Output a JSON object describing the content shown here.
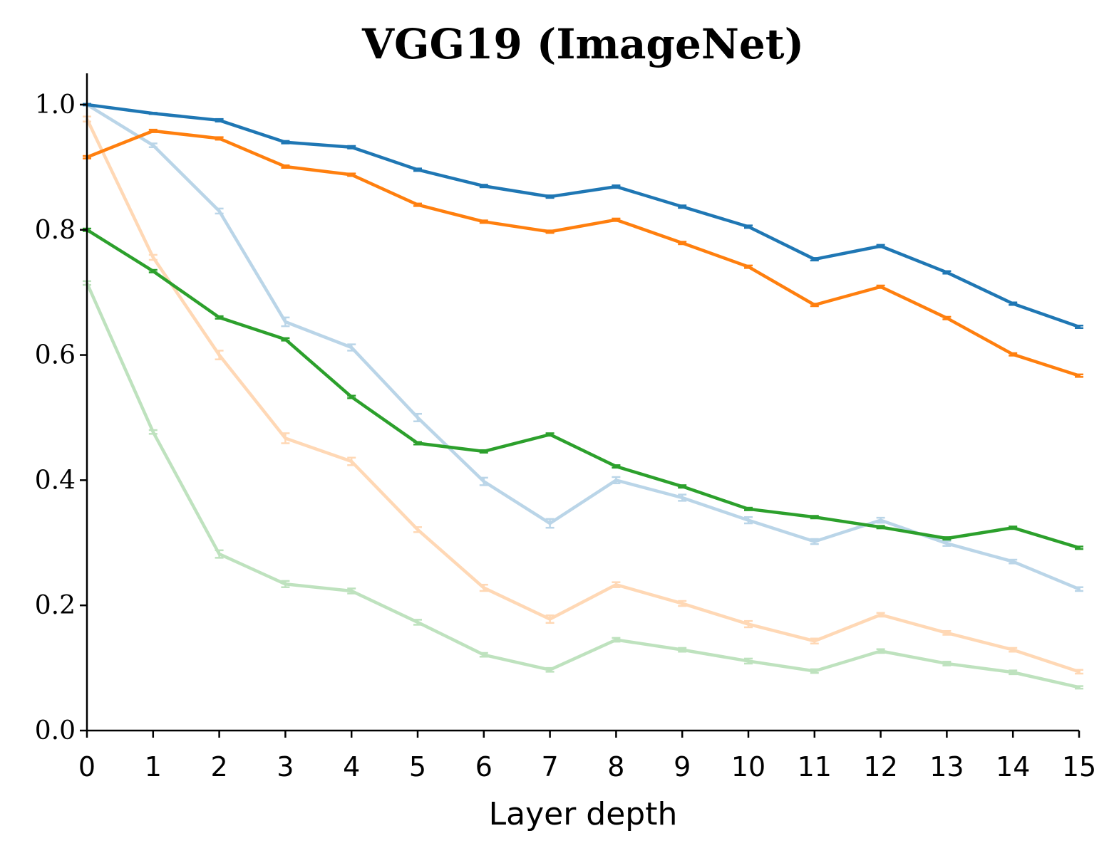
{
  "chart_data": {
    "type": "line",
    "title": "VGG19 (ImageNet)",
    "xlabel": "Layer depth",
    "ylabel": "",
    "xlim": [
      0,
      15
    ],
    "ylim": [
      0,
      1.05
    ],
    "x": [
      0,
      1,
      2,
      3,
      4,
      5,
      6,
      7,
      8,
      9,
      10,
      11,
      12,
      13,
      14,
      15
    ],
    "xticks": [
      0,
      1,
      2,
      3,
      4,
      5,
      6,
      7,
      8,
      9,
      10,
      11,
      12,
      13,
      14,
      15
    ],
    "xtick_labels": [
      "0",
      "1",
      "2",
      "3",
      "4",
      "5",
      "6",
      "7",
      "8",
      "9",
      "10",
      "11",
      "12",
      "13",
      "14",
      "15"
    ],
    "yticks": [
      0.0,
      0.2,
      0.4,
      0.6,
      0.8,
      1.0
    ],
    "ytick_labels": [
      "0.0",
      "0.2",
      "0.4",
      "0.6",
      "0.8",
      "1.0"
    ],
    "grid": false,
    "legend": "none",
    "series": [
      {
        "name": "blue-light",
        "color": "#1f77b4",
        "opacity": 0.3,
        "values": [
          1.0,
          0.935,
          0.83,
          0.653,
          0.612,
          0.5,
          0.398,
          0.331,
          0.4,
          0.372,
          0.336,
          0.302,
          0.336,
          0.299,
          0.27,
          0.226
        ],
        "errors": [
          0.002,
          0.003,
          0.004,
          0.007,
          0.005,
          0.006,
          0.006,
          0.007,
          0.005,
          0.005,
          0.005,
          0.004,
          0.004,
          0.004,
          0.003,
          0.003
        ]
      },
      {
        "name": "orange-light",
        "color": "#ff7f0e",
        "opacity": 0.3,
        "values": [
          0.977,
          0.756,
          0.6,
          0.467,
          0.43,
          0.321,
          0.228,
          0.178,
          0.233,
          0.203,
          0.17,
          0.143,
          0.185,
          0.156,
          0.129,
          0.094
        ],
        "errors": [
          0.004,
          0.004,
          0.007,
          0.008,
          0.006,
          0.004,
          0.005,
          0.006,
          0.004,
          0.004,
          0.005,
          0.004,
          0.003,
          0.003,
          0.003,
          0.003
        ]
      },
      {
        "name": "green-light",
        "color": "#2ca02c",
        "opacity": 0.3,
        "values": [
          0.715,
          0.477,
          0.282,
          0.234,
          0.223,
          0.173,
          0.121,
          0.097,
          0.145,
          0.129,
          0.111,
          0.095,
          0.127,
          0.107,
          0.093,
          0.069
        ],
        "errors": [
          0.003,
          0.003,
          0.006,
          0.005,
          0.004,
          0.004,
          0.003,
          0.003,
          0.003,
          0.003,
          0.004,
          0.003,
          0.003,
          0.003,
          0.003,
          0.002
        ]
      },
      {
        "name": "blue",
        "color": "#1f77b4",
        "opacity": 1.0,
        "values": [
          1.0,
          0.986,
          0.975,
          0.94,
          0.932,
          0.896,
          0.87,
          0.853,
          0.869,
          0.837,
          0.805,
          0.753,
          0.774,
          0.732,
          0.682,
          0.645
        ],
        "errors": [
          0.001,
          0.001,
          0.002,
          0.002,
          0.002,
          0.002,
          0.002,
          0.002,
          0.002,
          0.002,
          0.002,
          0.002,
          0.002,
          0.002,
          0.002,
          0.002
        ]
      },
      {
        "name": "orange",
        "color": "#ff7f0e",
        "opacity": 1.0,
        "values": [
          0.916,
          0.958,
          0.946,
          0.901,
          0.888,
          0.84,
          0.813,
          0.797,
          0.816,
          0.779,
          0.741,
          0.68,
          0.709,
          0.659,
          0.601,
          0.567
        ],
        "errors": [
          0.002,
          0.002,
          0.002,
          0.002,
          0.002,
          0.002,
          0.002,
          0.002,
          0.002,
          0.002,
          0.002,
          0.002,
          0.002,
          0.002,
          0.002,
          0.002
        ]
      },
      {
        "name": "green",
        "color": "#2ca02c",
        "opacity": 1.0,
        "values": [
          0.8,
          0.734,
          0.66,
          0.625,
          0.533,
          0.459,
          0.446,
          0.473,
          0.422,
          0.39,
          0.354,
          0.341,
          0.325,
          0.307,
          0.324,
          0.292
        ],
        "errors": [
          0.002,
          0.002,
          0.002,
          0.002,
          0.002,
          0.002,
          0.002,
          0.002,
          0.002,
          0.002,
          0.002,
          0.002,
          0.002,
          0.002,
          0.002,
          0.002
        ]
      }
    ]
  }
}
